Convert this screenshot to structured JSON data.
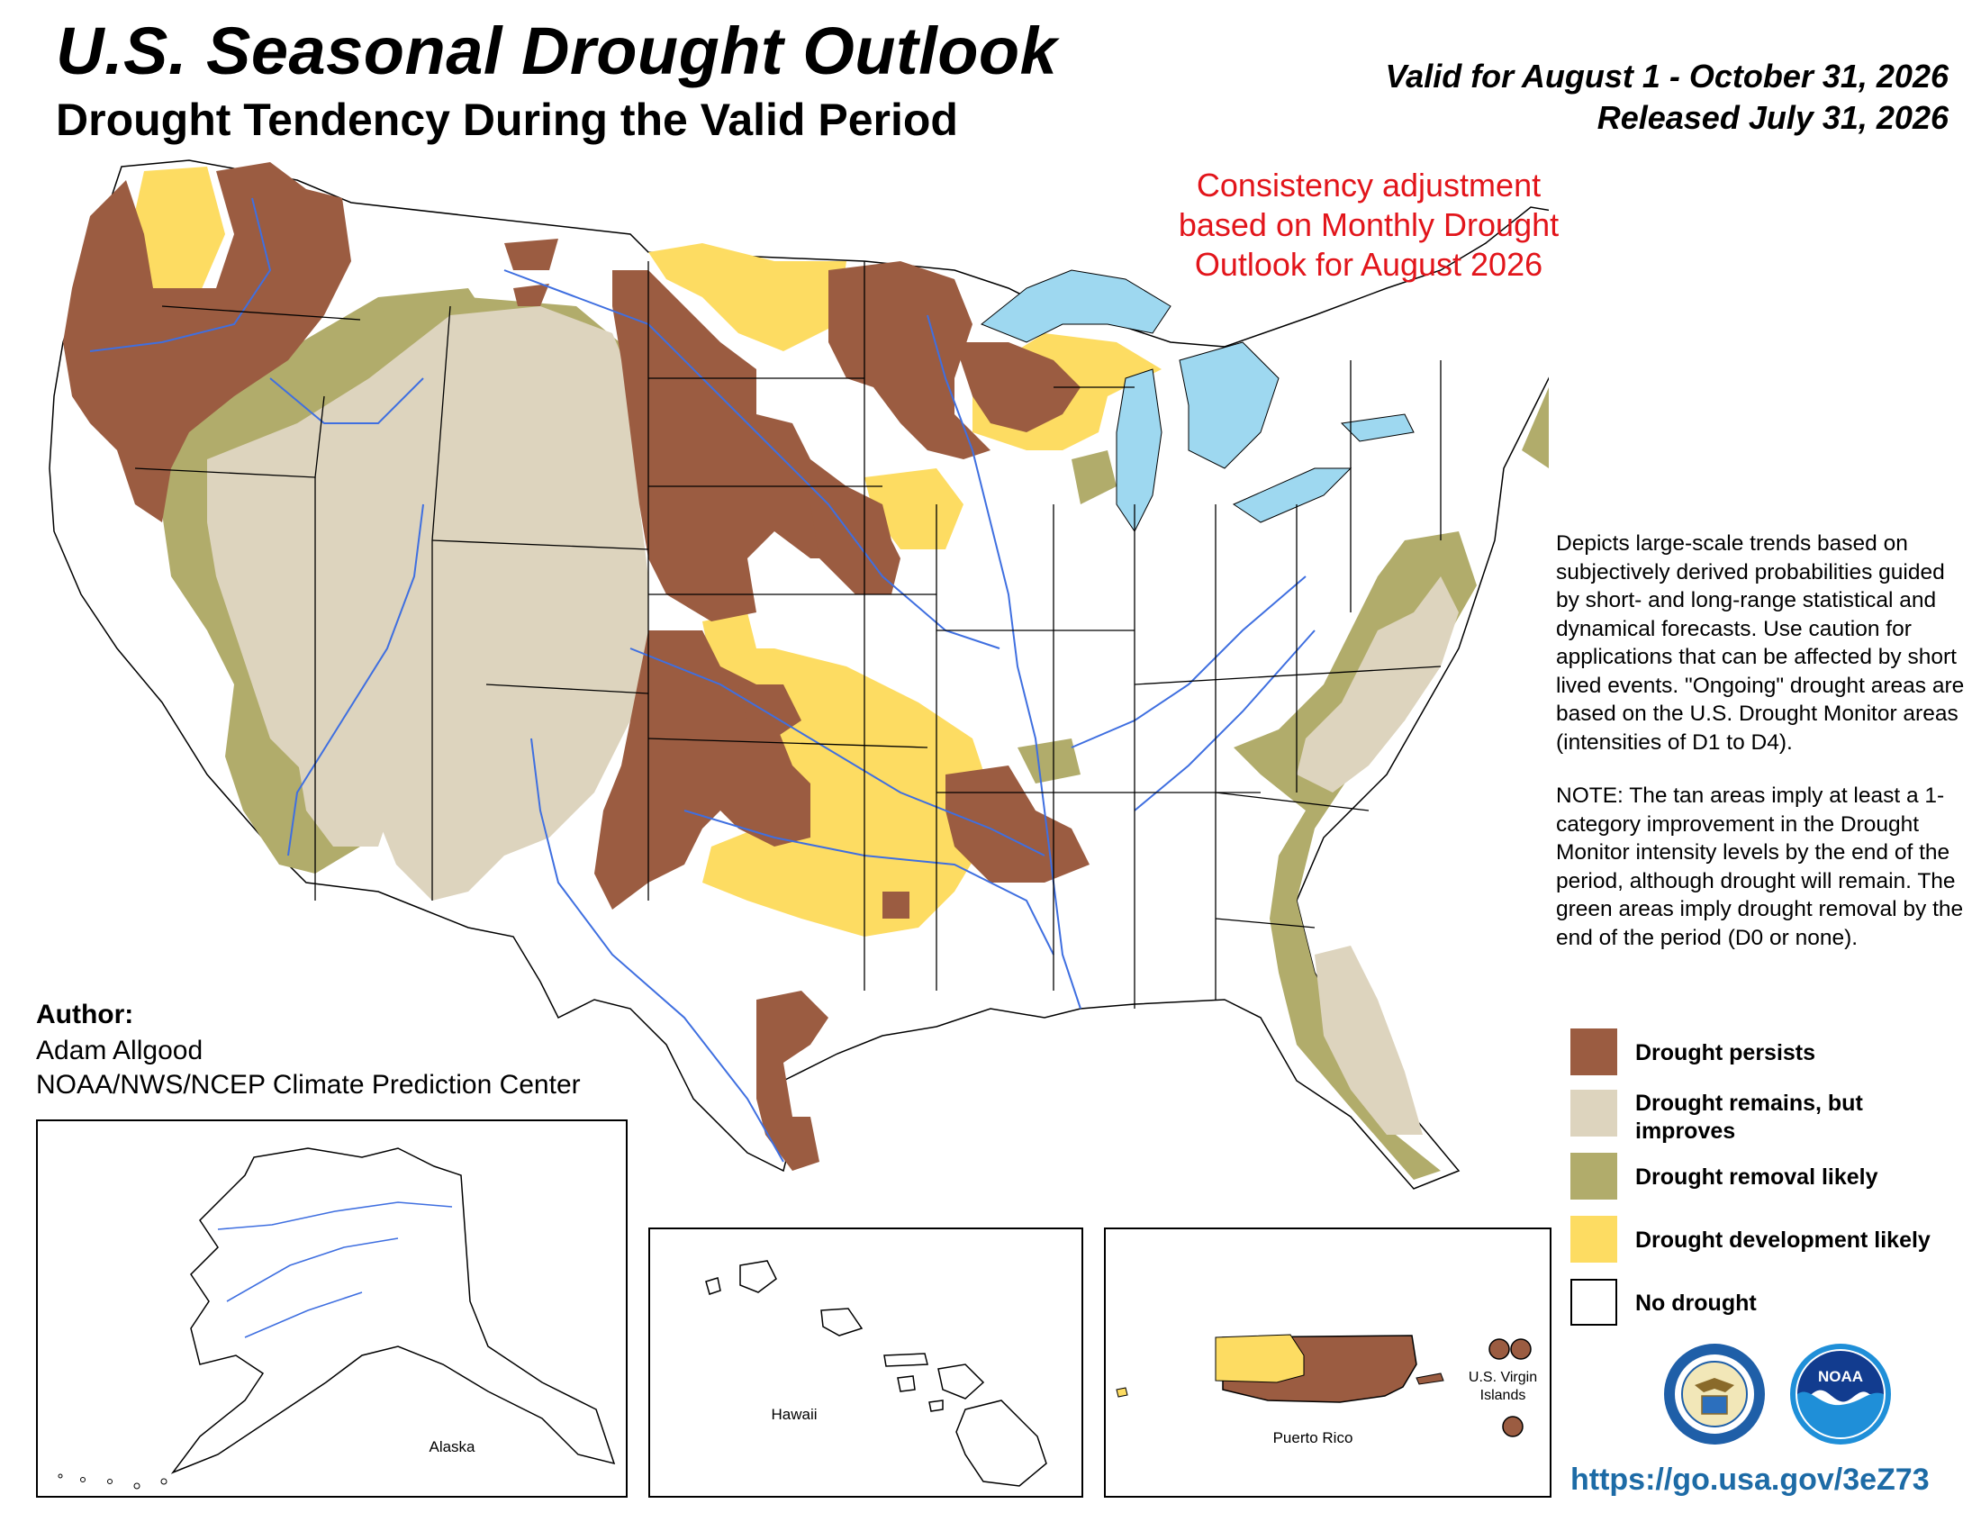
{
  "header": {
    "title": "U.S. Seasonal Drought Outlook",
    "subtitle": "Drought Tendency During the Valid Period",
    "valid": "Valid for August 1 - October 31, 2026",
    "released": "Released July 31, 2026"
  },
  "consistency_note": "Consistency adjustment based on Monthly Drought Outlook for August 2026",
  "description": {
    "paragraph1": "Depicts large-scale trends based on subjectively derived probabilities guided by short- and long-range statistical and dynamical forecasts. Use caution for applications that can be affected by short lived events. \"Ongoing\" drought areas are based on the U.S. Drought Monitor areas (intensities of D1 to D4).",
    "paragraph2": "NOTE: The tan areas imply at least a 1-category improvement in the Drought Monitor intensity levels by the end of the period, although drought will remain. The green areas imply drought removal by the end of the period (D0 or none)."
  },
  "legend": [
    {
      "label": "Drought persists",
      "color": "#9b5c41"
    },
    {
      "label": "Drought remains, but improves",
      "color": "#ddd4be"
    },
    {
      "label": "Drought removal likely",
      "color": "#b1ac6b"
    },
    {
      "label": "Drought development likely",
      "color": "#fddc62"
    },
    {
      "label": "No drought",
      "color": "#ffffff"
    }
  ],
  "author": {
    "label": "Author:",
    "name": "Adam Allgood",
    "org": "NOAA/NWS/NCEP Climate Prediction Center"
  },
  "insets": {
    "alaska": "Alaska",
    "hawaii": "Hawaii",
    "puerto_rico": "Puerto Rico",
    "virgin_islands": "U.S. Virgin Islands"
  },
  "logos": {
    "commerce": "DEPARTMENT OF COMMERCE · UNITED STATES OF AMERICA",
    "noaa": "NOAA"
  },
  "url": "https://go.usa.gov/3eZ73",
  "colors": {
    "persists": "#9b5c41",
    "improves": "#ddd4be",
    "removal": "#b1ac6b",
    "development": "#fddc62",
    "water": "#9ed8f0",
    "rivers": "#3f6fe0",
    "note_red": "#e2151b",
    "url_blue": "#1d6ba6"
  }
}
